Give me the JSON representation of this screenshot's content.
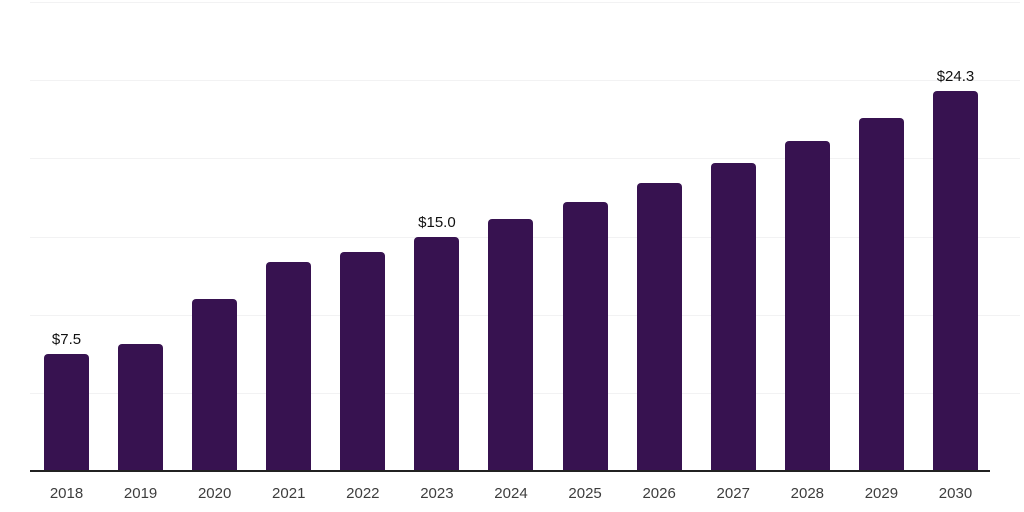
{
  "chart_data": {
    "type": "bar",
    "title": "",
    "xlabel": "",
    "ylabel": "",
    "categories": [
      "2018",
      "2019",
      "2020",
      "2021",
      "2022",
      "2023",
      "2024",
      "2025",
      "2026",
      "2027",
      "2028",
      "2029",
      "2030"
    ],
    "values": [
      7.5,
      8.1,
      11.0,
      13.4,
      14.0,
      15.0,
      16.1,
      17.2,
      18.4,
      19.7,
      21.1,
      22.6,
      24.3
    ],
    "data_labels": [
      "$7.5",
      "",
      "",
      "",
      "",
      "$15.0",
      "",
      "",
      "",
      "",
      "",
      "",
      "$24.3"
    ],
    "ylim": [
      0,
      30
    ],
    "grid_step": 5,
    "grid": "horizontal-only",
    "legend": "none",
    "colors": {
      "bar": "#371250",
      "axis": "#212121",
      "grid": "#f2f2f3",
      "data_label": "#111111",
      "tick_label": "#3d3d3d",
      "background": "#ffffff"
    }
  }
}
